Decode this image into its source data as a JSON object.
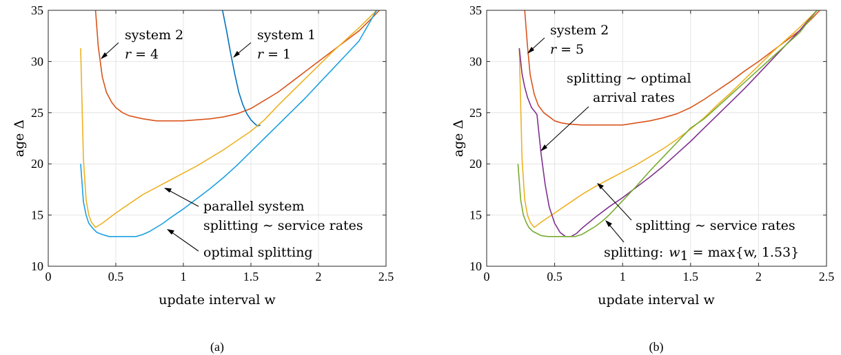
{
  "chart_data": [
    {
      "type": "line",
      "caption": "(a)",
      "xlabel": "update interval w",
      "ylabel": "age Δ",
      "xlim": [
        0,
        2.5
      ],
      "ylim": [
        10,
        35
      ],
      "xticks": [
        "0",
        "0.5",
        "1",
        "1.5",
        "2",
        "2.5"
      ],
      "yticks": [
        "10",
        "15",
        "20",
        "25",
        "30",
        "35"
      ],
      "grid": true,
      "series": [
        {
          "color": "#D95319",
          "x": [
            0.35,
            0.37,
            0.4,
            0.43,
            0.47,
            0.5,
            0.55,
            0.6,
            0.7,
            0.8,
            0.9,
            1.0,
            1.1,
            1.2,
            1.3,
            1.4,
            1.5,
            1.6,
            1.7,
            1.8,
            1.9,
            2.0,
            2.1,
            2.2,
            2.3,
            2.4,
            2.45
          ],
          "y": [
            35,
            31.5,
            28.5,
            27.0,
            26.0,
            25.5,
            25.0,
            24.7,
            24.4,
            24.2,
            24.2,
            24.2,
            24.3,
            24.4,
            24.6,
            24.9,
            25.4,
            26.2,
            27.0,
            28.0,
            29.0,
            30.0,
            31.0,
            32.0,
            33.0,
            34.3,
            35.0
          ]
        },
        {
          "color": "#0072BD",
          "x": [
            1.29,
            1.32,
            1.35,
            1.38,
            1.41,
            1.44,
            1.47,
            1.5,
            1.53,
            1.55,
            1.57
          ],
          "y": [
            35,
            33.0,
            30.8,
            28.8,
            27.0,
            25.8,
            24.9,
            24.3,
            23.9,
            23.7,
            23.8
          ]
        },
        {
          "color": "#EDB120",
          "x": [
            0.24,
            0.26,
            0.28,
            0.3,
            0.32,
            0.35,
            0.4,
            0.5,
            0.6,
            0.7,
            0.8,
            0.9,
            1.0,
            1.1,
            1.2,
            1.3,
            1.4,
            1.5,
            1.6,
            1.7,
            1.8,
            1.9,
            2.0,
            2.1,
            2.2,
            2.3,
            2.4,
            2.43
          ],
          "y": [
            31.3,
            20.5,
            16.5,
            15.0,
            14.3,
            13.8,
            14.2,
            15.2,
            16.1,
            17.0,
            17.7,
            18.4,
            19.1,
            19.8,
            20.6,
            21.4,
            22.3,
            23.2,
            24.3,
            25.7,
            27.0,
            28.3,
            29.6,
            30.9,
            32.1,
            33.3,
            34.6,
            35.0
          ]
        },
        {
          "color": "#1A9FE0",
          "x": [
            0.24,
            0.26,
            0.28,
            0.3,
            0.33,
            0.36,
            0.4,
            0.45,
            0.5,
            0.55,
            0.6,
            0.65,
            0.7,
            0.75,
            0.8,
            0.85,
            0.9,
            1.0,
            1.1,
            1.2,
            1.3,
            1.4,
            1.5,
            1.6,
            1.7,
            1.8,
            1.9,
            2.0,
            2.1,
            2.2,
            2.3,
            2.43
          ],
          "y": [
            20.0,
            16.3,
            15.0,
            14.2,
            13.7,
            13.3,
            13.1,
            12.9,
            12.9,
            12.9,
            12.9,
            12.9,
            13.1,
            13.4,
            13.8,
            14.2,
            14.7,
            15.6,
            16.6,
            17.6,
            18.7,
            19.9,
            21.2,
            22.5,
            23.8,
            25.1,
            26.4,
            27.8,
            29.2,
            30.6,
            32.0,
            35.0
          ]
        }
      ],
      "annotations": [
        {
          "text": "system 2",
          "line2_var": "r",
          "line2_rest": "= 4"
        },
        {
          "text": "system 1",
          "line2_var": "r",
          "line2_rest": "= 1"
        },
        {
          "text": "parallel system"
        },
        {
          "text": "splitting ∼ service rates"
        },
        {
          "text": "optimal splitting"
        }
      ]
    },
    {
      "type": "line",
      "caption": "(b)",
      "xlabel": "update interval w",
      "ylabel": "age Δ",
      "xlim": [
        0,
        2.5
      ],
      "ylim": [
        10,
        35
      ],
      "xticks": [
        "0",
        "0.5",
        "1",
        "1.5",
        "2",
        "2.5"
      ],
      "yticks": [
        "10",
        "15",
        "20",
        "25",
        "30",
        "35"
      ],
      "grid": true,
      "series": [
        {
          "color": "#D95319",
          "x": [
            0.28,
            0.3,
            0.32,
            0.35,
            0.38,
            0.42,
            0.47,
            0.5,
            0.55,
            0.6,
            0.7,
            0.8,
            0.9,
            1.0,
            1.1,
            1.2,
            1.3,
            1.4,
            1.5,
            1.6,
            1.7,
            1.8,
            1.9,
            2.0,
            2.1,
            2.2,
            2.3,
            2.4,
            2.45
          ],
          "y": [
            35,
            31.5,
            28.7,
            26.8,
            25.7,
            25.0,
            24.5,
            24.2,
            24.0,
            23.9,
            23.8,
            23.8,
            23.8,
            23.8,
            24.0,
            24.2,
            24.5,
            24.9,
            25.5,
            26.3,
            27.2,
            28.1,
            29.1,
            30.0,
            31.0,
            32.0,
            33.0,
            34.3,
            35.0
          ]
        },
        {
          "color": "#EDB120",
          "x": [
            0.24,
            0.26,
            0.28,
            0.3,
            0.32,
            0.35,
            0.4,
            0.5,
            0.6,
            0.7,
            0.8,
            0.9,
            1.0,
            1.1,
            1.2,
            1.3,
            1.4,
            1.5,
            1.6,
            1.7,
            1.8,
            1.9,
            2.0,
            2.1,
            2.2,
            2.3,
            2.4,
            2.43
          ],
          "y": [
            31.3,
            20.5,
            16.5,
            15.0,
            14.3,
            13.8,
            14.3,
            15.2,
            16.1,
            17.0,
            17.8,
            18.5,
            19.2,
            19.9,
            20.7,
            21.5,
            22.4,
            23.4,
            24.5,
            25.8,
            27.0,
            28.3,
            29.6,
            30.9,
            32.1,
            33.3,
            34.6,
            35.0
          ]
        },
        {
          "color": "#7E2F8E",
          "x": [
            0.24,
            0.26,
            0.28,
            0.3,
            0.33,
            0.36,
            0.37,
            0.4,
            0.43,
            0.46,
            0.5,
            0.54,
            0.58,
            0.62,
            0.66,
            0.7,
            0.8,
            0.9,
            1.0,
            1.1,
            1.2,
            1.3,
            1.4,
            1.5,
            1.6,
            1.7,
            1.8,
            1.9,
            2.0,
            2.1,
            2.2,
            2.3,
            2.43
          ],
          "y": [
            31.3,
            28.8,
            27.5,
            26.5,
            25.5,
            25.0,
            24.8,
            21.0,
            18.0,
            15.8,
            14.2,
            13.3,
            12.9,
            12.9,
            13.2,
            13.7,
            14.8,
            15.8,
            16.7,
            17.7,
            18.7,
            19.8,
            21.0,
            22.2,
            23.5,
            24.8,
            26.1,
            27.4,
            28.8,
            30.2,
            31.6,
            33.0,
            35.0
          ]
        },
        {
          "color": "#77AC30",
          "x": [
            0.23,
            0.25,
            0.27,
            0.29,
            0.31,
            0.34,
            0.37,
            0.4,
            0.45,
            0.5,
            0.55,
            0.6,
            0.65,
            0.7,
            0.75,
            0.8,
            0.85,
            0.9,
            1.0,
            1.1,
            1.2,
            1.3,
            1.4,
            1.5,
            1.6,
            1.7,
            1.8,
            1.9,
            2.0,
            2.1,
            2.2,
            2.3,
            2.43
          ],
          "y": [
            20.0,
            16.5,
            15.0,
            14.3,
            13.8,
            13.4,
            13.2,
            13.0,
            12.9,
            12.9,
            12.9,
            12.9,
            12.9,
            13.1,
            13.5,
            13.9,
            14.4,
            15.0,
            16.4,
            17.8,
            19.3,
            20.7,
            22.1,
            23.5,
            24.4,
            25.6,
            26.8,
            28.0,
            29.2,
            30.4,
            31.6,
            32.8,
            35.0
          ]
        }
      ],
      "annotations": [
        {
          "text": "system 2",
          "line2_var": "r",
          "line2_rest": "= 5"
        },
        {
          "text": "splitting ∼ optimal"
        },
        {
          "text": "arrival rates"
        },
        {
          "text": "splitting ∼ service rates"
        },
        {
          "text": "splitting:",
          "formula": "w",
          "sub": "1",
          "rest": " = max{w, 1.53}"
        }
      ]
    }
  ]
}
